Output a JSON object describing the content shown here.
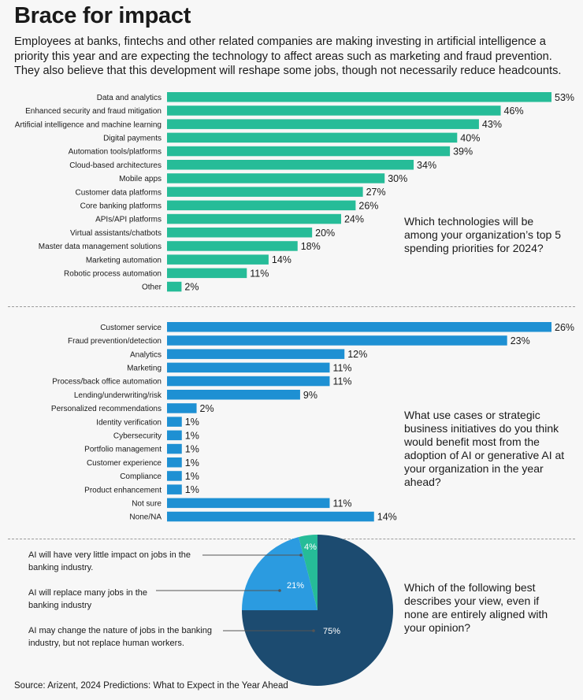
{
  "header": {
    "title": "Brace for impact",
    "subtitle": "Employees at banks, fintechs and other related companies are making investing in artificial intelligence a priority this year and are expecting the technology to affect areas such as marketing and fraud prevention. They also believe that this development will reshape some jobs, though not necessarily reduce headcounts."
  },
  "colors": {
    "teal": "#26bc98",
    "blue": "#1e90d3",
    "navy": "#1c4b70",
    "lightblue": "#2b9be0",
    "pie_teal": "#26bc98"
  },
  "chart_data": [
    {
      "type": "bar",
      "orientation": "horizontal",
      "question": "Which technologies will be among your organization’s top 5 spending priorities for 2024?",
      "categories": [
        "Data and analytics",
        "Enhanced security and fraud mitigation",
        "Artificial intelligence and machine learning",
        "Digital payments",
        "Automation tools/platforms",
        "Cloud-based architectures",
        "Mobile apps",
        "Customer data platforms",
        "Core banking platforms",
        "APIs/API platforms",
        "Virtual assistants/chatbots",
        "Master data management solutions",
        "Marketing automation",
        "Robotic process automation",
        "Other"
      ],
      "values": [
        53,
        46,
        43,
        40,
        39,
        34,
        30,
        27,
        26,
        24,
        20,
        18,
        14,
        11,
        2
      ],
      "value_labels": [
        "53%",
        "46%",
        "43%",
        "40%",
        "39%",
        "34%",
        "30%",
        "27%",
        "26%",
        "24%",
        "20%",
        "18%",
        "14%",
        "11%",
        "2%"
      ],
      "unit": "%"
    },
    {
      "type": "bar",
      "orientation": "horizontal",
      "question": "What use cases or strategic business initiatives do you think would benefit most from the adoption of AI or generative AI at your organization in the year ahead?",
      "categories": [
        "Customer service",
        "Fraud prevention/detection",
        "Analytics",
        "Marketing",
        "Process/back office automation",
        "Lending/underwriting/risk",
        "Personalized recommendations",
        "Identity verification",
        "Cybersecurity",
        "Portfolio management",
        "Customer experience",
        "Compliance",
        "Product enhancement",
        "Not sure",
        "None/NA"
      ],
      "values": [
        26,
        23,
        12,
        11,
        11,
        9,
        2,
        1,
        1,
        1,
        1,
        1,
        1,
        11,
        14
      ],
      "value_labels": [
        "26%",
        "23%",
        "12%",
        "11%",
        "11%",
        "9%",
        "2%",
        "1%",
        "1%",
        "1%",
        "1%",
        "1%",
        "1%",
        "11%",
        "14%"
      ],
      "unit": "%"
    },
    {
      "type": "pie",
      "question": "Which of the following best describes your view, even if none are entirely aligned with your opinion?",
      "slices": [
        {
          "label": "AI may change the nature of jobs in the banking industry, but not replace human workers.",
          "value": 75,
          "value_label": "75%"
        },
        {
          "label": "AI will replace many jobs in the banking industry",
          "value": 21,
          "value_label": "21%"
        },
        {
          "label": "AI will have very little impact on jobs in the banking industry.",
          "value": 4,
          "value_label": "4%"
        }
      ]
    }
  ],
  "footer": {
    "source": "Source: Arizent, 2024 Predictions: What to Expect in the Year Ahead"
  }
}
